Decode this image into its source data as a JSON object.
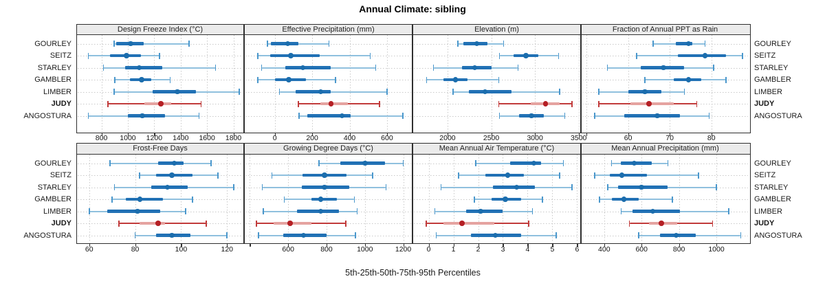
{
  "title": "Annual Climate: sibling",
  "caption": "5th-25th-50th-75th-95th Percentiles",
  "sites": [
    "GOURLEY",
    "SEITZ",
    "STARLEY",
    "GAMBLER",
    "LIMBER",
    "JUDY",
    "ANGOSTURA"
  ],
  "highlight_site": "JUDY",
  "colors": {
    "blue_range": "#8fc0de",
    "blue_cap": "#4a97cc",
    "blue_band": "#2171b5",
    "blue_dot": "#1b6dad",
    "red_range": "#c13b3b",
    "red_cap": "#c13b3b",
    "red_band": "#e5a3a0",
    "red_dot": "#b51f24",
    "strip_bg": "#ebebeb",
    "border": "#333333",
    "grid": "#c9c9c9",
    "text": "#1a1a1a"
  },
  "chart_data": {
    "type": "dot-interval-trellis",
    "layout": "2 rows x 4 cols, shared site axis, grid dotted on, site labels on both left and right",
    "percentiles": [
      "5th",
      "25th",
      "50th",
      "75th",
      "95th"
    ],
    "panels": [
      {
        "title": "Design Freeze Index (°C)",
        "xlim": [
          620,
          1870
        ],
        "ticks": [
          800,
          1000,
          1200,
          1400,
          1600,
          1800
        ],
        "unlabeled_ticks": [],
        "values": {
          "GOURLEY": [
            895,
            910,
            1020,
            1120,
            1465
          ],
          "SEITZ": [
            700,
            865,
            990,
            1100,
            1240
          ],
          "STARLEY": [
            815,
            980,
            1085,
            1260,
            1665
          ],
          "GAMBLER": [
            900,
            1015,
            1105,
            1175,
            1320
          ],
          "LIMBER": [
            895,
            1190,
            1375,
            1515,
            1845
          ],
          "JUDY": [
            850,
            1125,
            1250,
            1330,
            1555
          ],
          "ANGOSTURA": [
            700,
            1000,
            1110,
            1280,
            1540
          ]
        }
      },
      {
        "title": "Effective Precipitation (mm)",
        "xlim": [
          -157,
          729
        ],
        "ticks": [
          0,
          200,
          400,
          600
        ],
        "unlabeled_ticks": [],
        "values": {
          "GOURLEY": [
            -40,
            -20,
            70,
            125,
            290
          ],
          "SEITZ": [
            -90,
            -25,
            85,
            240,
            510
          ],
          "STARLEY": [
            -70,
            55,
            150,
            300,
            540
          ],
          "GAMBLER": [
            -90,
            0,
            75,
            165,
            325
          ],
          "LIMBER": [
            25,
            110,
            245,
            300,
            600
          ],
          "JUDY": [
            125,
            245,
            300,
            390,
            560
          ],
          "ANGOSTURA": [
            130,
            175,
            360,
            405,
            685
          ]
        }
      },
      {
        "title": "Elevation (m)",
        "xlim": [
          1615,
          3510
        ],
        "ticks": [
          2000,
          2500,
          3000,
          3500
        ],
        "unlabeled_ticks": [],
        "values": {
          "GOURLEY": [
            2120,
            2185,
            2335,
            2460,
            2640
          ],
          "SEITZ": [
            2595,
            2755,
            2895,
            3040,
            3270
          ],
          "STARLEY": [
            1840,
            2165,
            2310,
            2500,
            2805
          ],
          "GAMBLER": [
            1760,
            1950,
            2090,
            2230,
            2585
          ],
          "LIMBER": [
            2065,
            2245,
            2430,
            2735,
            3280
          ],
          "JUDY": [
            2585,
            2950,
            3120,
            3280,
            3425
          ],
          "ANGOSTURA": [
            2595,
            2815,
            2960,
            3100,
            3340
          ]
        }
      },
      {
        "title": "Fraction of Annual PPT as Rain",
        "xlim": [
          49,
          88.8
        ],
        "ticks": [
          60,
          70,
          80
        ],
        "unlabeled_ticks": [
          50
        ],
        "values": {
          "GOURLEY": [
            66,
            71.5,
            74.5,
            75.5,
            78.5
          ],
          "SEITZ": [
            62,
            72,
            78.5,
            83.5,
            87.5
          ],
          "STARLEY": [
            55,
            63,
            68.5,
            73.5,
            80.5
          ],
          "GAMBLER": [
            64,
            71,
            74.5,
            77.5,
            83.5
          ],
          "LIMBER": [
            53,
            60,
            64,
            68,
            73.5
          ],
          "JUDY": [
            53,
            60.5,
            65,
            71,
            76.5
          ],
          "ANGOSTURA": [
            52,
            59,
            67,
            72.5,
            79.5
          ]
        }
      },
      {
        "title": "Frost-Free Days",
        "xlim": [
          55,
          126.8
        ],
        "ticks": [
          60,
          80,
          100,
          120
        ],
        "unlabeled_ticks": [],
        "values": {
          "GOURLEY": [
            69,
            90,
            97,
            101,
            113
          ],
          "SEITZ": [
            82,
            89,
            96,
            105,
            116
          ],
          "STARLEY": [
            71,
            87,
            94,
            103,
            123
          ],
          "GAMBLER": [
            70,
            76,
            82,
            92,
            105
          ],
          "LIMBER": [
            60,
            68,
            81,
            91,
            102
          ],
          "JUDY": [
            73,
            82,
            90,
            93,
            111
          ],
          "ANGOSTURA": [
            80,
            89,
            96,
            104,
            120
          ]
        }
      },
      {
        "title": "Growing Degree Days (°C)",
        "xlim": [
          377,
          1241
        ],
        "ticks": [
          600,
          800,
          1000,
          1200
        ],
        "unlabeled_ticks": [
          400
        ],
        "values": {
          "GOURLEY": [
            760,
            870,
            1000,
            1105,
            1200
          ],
          "SEITZ": [
            515,
            675,
            790,
            905,
            1040
          ],
          "STARLEY": [
            465,
            670,
            790,
            920,
            1110
          ],
          "GAMBLER": [
            580,
            720,
            770,
            855,
            945
          ],
          "LIMBER": [
            470,
            645,
            770,
            865,
            960
          ],
          "JUDY": [
            435,
            525,
            610,
            720,
            900
          ],
          "ANGOSTURA": [
            445,
            575,
            680,
            800,
            950
          ]
        }
      },
      {
        "title": "Mean Annual Air Temperature (°C)",
        "xlim": [
          -0.6,
          6.1
        ],
        "ticks": [
          0,
          1,
          2,
          3,
          4,
          5,
          6
        ],
        "unlabeled_ticks": [],
        "values": {
          "GOURLEY": [
            1.9,
            3.3,
            4.25,
            4.55,
            5.45
          ],
          "SEITZ": [
            1.2,
            2.3,
            3.2,
            3.85,
            5.3
          ],
          "STARLEY": [
            0.5,
            2.6,
            3.55,
            4.3,
            5.8
          ],
          "GAMBLER": [
            1.85,
            2.55,
            3.1,
            3.75,
            4.6
          ],
          "LIMBER": [
            0.25,
            1.5,
            2.1,
            3.0,
            4.2
          ],
          "JUDY": [
            -0.1,
            0.6,
            1.35,
            2.65,
            4.05
          ],
          "ANGOSTURA": [
            0.3,
            1.7,
            2.7,
            3.75,
            5.15
          ]
        }
      },
      {
        "title": "Mean Annual Precipitation (mm)",
        "xlim": [
          283,
          1169
        ],
        "ticks": [
          400,
          600,
          800,
          1000
        ],
        "unlabeled_ticks": [],
        "values": {
          "GOURLEY": [
            440,
            490,
            560,
            655,
            740
          ],
          "SEITZ": [
            350,
            430,
            495,
            630,
            905
          ],
          "STARLEY": [
            420,
            475,
            600,
            740,
            1000
          ],
          "GAMBLER": [
            375,
            440,
            505,
            585,
            765
          ],
          "LIMBER": [
            490,
            550,
            660,
            805,
            1065
          ],
          "JUDY": [
            535,
            640,
            705,
            790,
            980
          ],
          "ANGOSTURA": [
            585,
            700,
            785,
            890,
            1130
          ]
        }
      }
    ]
  }
}
